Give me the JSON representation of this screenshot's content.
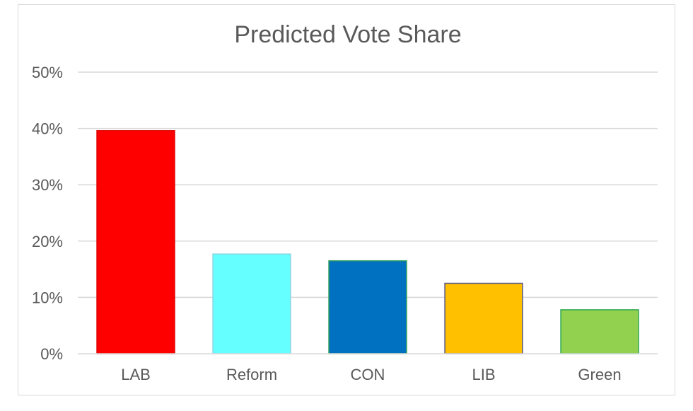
{
  "chart_data": {
    "type": "bar",
    "title": "Predicted Vote Share",
    "xlabel": "",
    "ylabel": "",
    "categories": [
      "LAB",
      "Reform",
      "CON",
      "LIB",
      "Green"
    ],
    "values": [
      39.6,
      17.7,
      16.5,
      12.5,
      7.8
    ],
    "colors": [
      "#ff0000",
      "#66ffff",
      "#0070c0",
      "#ffc000",
      "#92d050"
    ],
    "outline_colors": [
      "#e00000",
      "#8ad6e6",
      "#2e9e5a",
      "#5a5a8a",
      "#2ea84f"
    ],
    "ylim": [
      0,
      50
    ],
    "yticks": [
      0,
      10,
      20,
      30,
      40,
      50
    ],
    "ytick_labels": [
      "0%",
      "10%",
      "20%",
      "30%",
      "40%",
      "50%"
    ],
    "grid": true,
    "legend": "none"
  }
}
